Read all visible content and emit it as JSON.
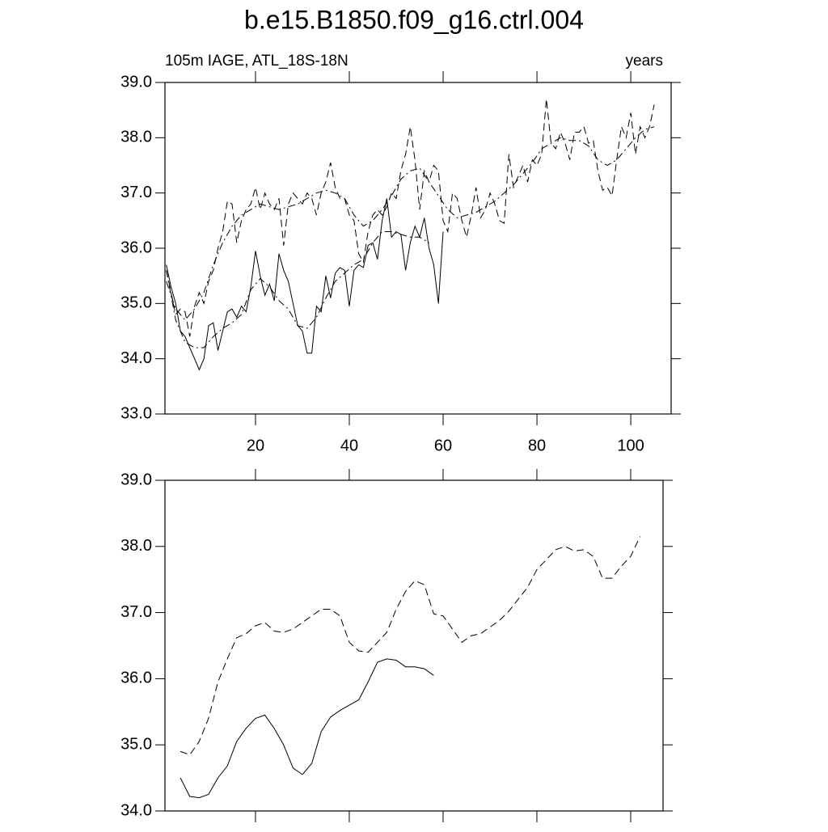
{
  "title": "b.e15.B1850.f09_g16.ctrl.004",
  "chart_data": [
    {
      "type": "line",
      "left_string": "105m IAGE, ATL_18S-18N",
      "right_string": "years",
      "xlim": [
        0.7,
        108.6
      ],
      "ylim": [
        33,
        39
      ],
      "xticks": [
        20,
        40,
        60,
        80,
        100
      ],
      "show_xtick_labels": true,
      "yticks": [
        {
          "value": 33,
          "label": "33.0"
        },
        {
          "value": 34,
          "label": "34.0"
        },
        {
          "value": 35,
          "label": "35.0"
        },
        {
          "value": 36,
          "label": "36.0"
        },
        {
          "value": 37,
          "label": "37.0"
        },
        {
          "value": 38,
          "label": "38.0"
        },
        {
          "value": 39,
          "label": "39.0"
        }
      ],
      "series": [
        {
          "color": "#000000",
          "dash": "solid",
          "x": [
            1,
            2,
            3,
            4,
            5,
            6,
            7,
            8,
            9,
            10,
            11,
            12,
            13,
            14,
            15,
            16,
            17,
            18,
            19,
            20,
            21,
            22,
            23,
            24,
            25,
            26,
            27,
            28,
            29,
            30,
            31,
            32,
            33,
            34,
            35,
            36,
            37,
            38,
            39,
            40,
            41,
            42,
            43,
            44,
            45,
            46,
            47,
            48,
            49,
            50,
            51,
            52,
            53,
            54,
            55,
            56,
            57,
            58,
            59,
            60
          ],
          "values": [
            35.7,
            35.3,
            35.0,
            34.5,
            34.4,
            34.2,
            34.0,
            33.8,
            34.0,
            34.6,
            34.65,
            34.15,
            34.5,
            34.85,
            34.9,
            34.75,
            34.95,
            34.85,
            35.3,
            35.95,
            35.5,
            35.15,
            35.35,
            35.05,
            35.9,
            35.6,
            35.4,
            35.0,
            34.6,
            34.5,
            34.1,
            34.1,
            34.95,
            34.85,
            35.5,
            35.1,
            35.55,
            35.65,
            35.6,
            34.95,
            35.6,
            35.7,
            35.65,
            36.05,
            36.1,
            35.8,
            36.5,
            36.9,
            36.2,
            36.3,
            36.25,
            35.6,
            36.1,
            36.4,
            36.2,
            36.55,
            36.0,
            35.7,
            35.0,
            36.3
          ]
        },
        {
          "color": "#000000",
          "dash": "dash",
          "x": [
            1,
            2,
            3,
            4,
            5,
            6,
            7,
            8,
            9,
            10,
            11,
            12,
            13,
            14,
            15,
            16,
            17,
            18,
            19,
            20,
            21,
            22,
            23,
            24,
            25,
            26,
            27,
            28,
            29,
            30,
            31,
            32,
            33,
            34,
            35,
            36,
            37,
            38,
            39,
            40,
            41,
            42,
            43,
            44,
            45,
            46,
            47,
            48,
            49,
            50,
            51,
            52,
            53,
            54,
            55,
            56,
            57,
            58,
            59,
            60,
            61,
            62,
            63,
            64,
            65,
            66,
            67,
            68,
            69,
            70,
            71,
            72,
            73,
            74,
            75,
            76,
            77,
            78,
            79,
            80,
            81,
            82,
            83,
            84,
            85,
            86,
            87,
            88,
            89,
            90,
            91,
            92,
            93,
            94,
            95,
            96,
            97,
            98,
            99,
            100,
            101,
            102,
            103,
            104,
            105
          ],
          "values": [
            35.6,
            35.2,
            34.8,
            34.9,
            34.85,
            34.4,
            34.95,
            35.2,
            35.0,
            35.4,
            35.6,
            36.0,
            36.3,
            36.85,
            36.8,
            36.1,
            36.5,
            36.7,
            36.8,
            37.1,
            36.7,
            37.0,
            36.8,
            36.7,
            36.9,
            36.05,
            36.8,
            37.0,
            36.9,
            36.8,
            37.0,
            36.9,
            36.6,
            37.0,
            37.2,
            37.55,
            37.1,
            36.9,
            36.9,
            36.6,
            36.5,
            35.9,
            35.75,
            36.3,
            36.6,
            36.7,
            36.6,
            36.75,
            37.0,
            36.9,
            37.4,
            37.7,
            38.2,
            37.6,
            36.7,
            37.4,
            37.2,
            37.5,
            37.4,
            36.5,
            36.3,
            37.0,
            36.9,
            36.5,
            36.2,
            36.6,
            37.1,
            36.55,
            36.7,
            37.0,
            36.8,
            36.5,
            36.45,
            37.7,
            37.1,
            37.3,
            37.5,
            37.2,
            37.6,
            37.5,
            37.7,
            38.7,
            37.9,
            37.8,
            38.1,
            37.9,
            37.6,
            38.1,
            38.1,
            38.2,
            37.9,
            37.95,
            37.4,
            37.05,
            37.1,
            36.95,
            37.6,
            38.2,
            38.0,
            38.45,
            37.7,
            38.2,
            38.0,
            38.2,
            38.6
          ]
        },
        {
          "color": "#000000",
          "dash": "dashdot",
          "x": [
            1,
            3,
            5,
            7,
            9,
            11,
            13,
            15,
            17,
            19,
            21,
            23,
            25,
            27,
            29,
            31,
            33,
            35,
            37,
            39,
            41,
            43,
            45,
            47,
            49,
            51,
            53,
            55,
            57
          ],
          "values": [
            35.6,
            34.7,
            34.3,
            34.2,
            34.2,
            34.4,
            34.55,
            34.65,
            34.8,
            35.25,
            35.45,
            35.3,
            35.05,
            34.9,
            34.6,
            34.55,
            34.75,
            35.1,
            35.4,
            35.55,
            35.7,
            35.8,
            36.1,
            36.3,
            36.3,
            36.25,
            36.2,
            36.2,
            36.1
          ]
        },
        {
          "color": "#000000",
          "dash": "dashdot",
          "x": [
            1,
            3,
            5,
            7,
            9,
            11,
            13,
            15,
            17,
            19,
            21,
            23,
            25,
            27,
            29,
            31,
            33,
            35,
            37,
            39,
            41,
            43,
            45,
            47,
            49,
            51,
            53,
            55,
            57,
            59,
            61,
            63,
            65,
            67,
            69,
            71,
            73,
            75,
            77,
            79,
            81,
            83,
            85,
            87,
            89,
            91,
            93,
            95,
            97,
            99,
            101,
            103,
            105
          ],
          "values": [
            35.4,
            34.9,
            34.7,
            34.9,
            35.2,
            35.7,
            36.1,
            36.4,
            36.6,
            36.7,
            36.8,
            36.75,
            36.7,
            36.75,
            36.8,
            36.9,
            37.0,
            37.05,
            37.0,
            36.9,
            36.6,
            36.4,
            36.5,
            36.7,
            36.95,
            37.25,
            37.4,
            37.45,
            37.2,
            36.95,
            36.7,
            36.55,
            36.6,
            36.65,
            36.75,
            36.85,
            37.0,
            37.15,
            37.35,
            37.55,
            37.8,
            37.9,
            38.0,
            37.95,
            37.95,
            37.85,
            37.6,
            37.5,
            37.6,
            37.8,
            38.0,
            38.15,
            38.2
          ]
        }
      ]
    },
    {
      "type": "line",
      "xlim": [
        0.7,
        106.9
      ],
      "ylim": [
        34,
        39
      ],
      "xticks": [
        20,
        40,
        60,
        80,
        100
      ],
      "show_xtick_labels": false,
      "yticks": [
        {
          "value": 34,
          "label": "34.0"
        },
        {
          "value": 35,
          "label": "35.0"
        },
        {
          "value": 36,
          "label": "36.0"
        },
        {
          "value": 37,
          "label": "37.0"
        },
        {
          "value": 38,
          "label": "38.0"
        },
        {
          "value": 39,
          "label": "39.0"
        }
      ],
      "series": [
        {
          "color": "#000000",
          "dash": "solid",
          "x": [
            4,
            6,
            8,
            10,
            12,
            14,
            16,
            18,
            20,
            22,
            24,
            26,
            28,
            30,
            32,
            34,
            36,
            38,
            40,
            42,
            44,
            46,
            48,
            50,
            52,
            54,
            56,
            58
          ],
          "values": [
            34.5,
            34.22,
            34.2,
            34.25,
            34.5,
            34.68,
            35.05,
            35.25,
            35.4,
            35.45,
            35.25,
            35.0,
            34.65,
            34.55,
            34.72,
            35.2,
            35.42,
            35.52,
            35.6,
            35.68,
            35.95,
            36.25,
            36.3,
            36.28,
            36.18,
            36.18,
            36.15,
            36.05
          ]
        },
        {
          "color": "#000000",
          "dash": "dash",
          "x": [
            4,
            6,
            8,
            10,
            12,
            14,
            16,
            18,
            20,
            22,
            24,
            26,
            28,
            30,
            32,
            34,
            36,
            38,
            40,
            42,
            44,
            46,
            48,
            50,
            52,
            54,
            56,
            58,
            60,
            62,
            64,
            66,
            68,
            70,
            72,
            74,
            76,
            78,
            80,
            82,
            84,
            86,
            88,
            90,
            92,
            94,
            96,
            98,
            100,
            102
          ],
          "values": [
            34.9,
            34.85,
            35.05,
            35.4,
            35.95,
            36.3,
            36.62,
            36.68,
            36.8,
            36.85,
            36.72,
            36.7,
            36.75,
            36.85,
            36.95,
            37.05,
            37.05,
            36.95,
            36.55,
            36.42,
            36.4,
            36.55,
            36.7,
            37.05,
            37.32,
            37.48,
            37.42,
            36.98,
            36.95,
            36.75,
            36.55,
            36.65,
            36.68,
            36.78,
            36.88,
            37.02,
            37.2,
            37.38,
            37.65,
            37.8,
            37.95,
            38.0,
            37.93,
            37.95,
            37.85,
            37.52,
            37.52,
            37.7,
            37.85,
            38.15
          ]
        }
      ]
    }
  ]
}
